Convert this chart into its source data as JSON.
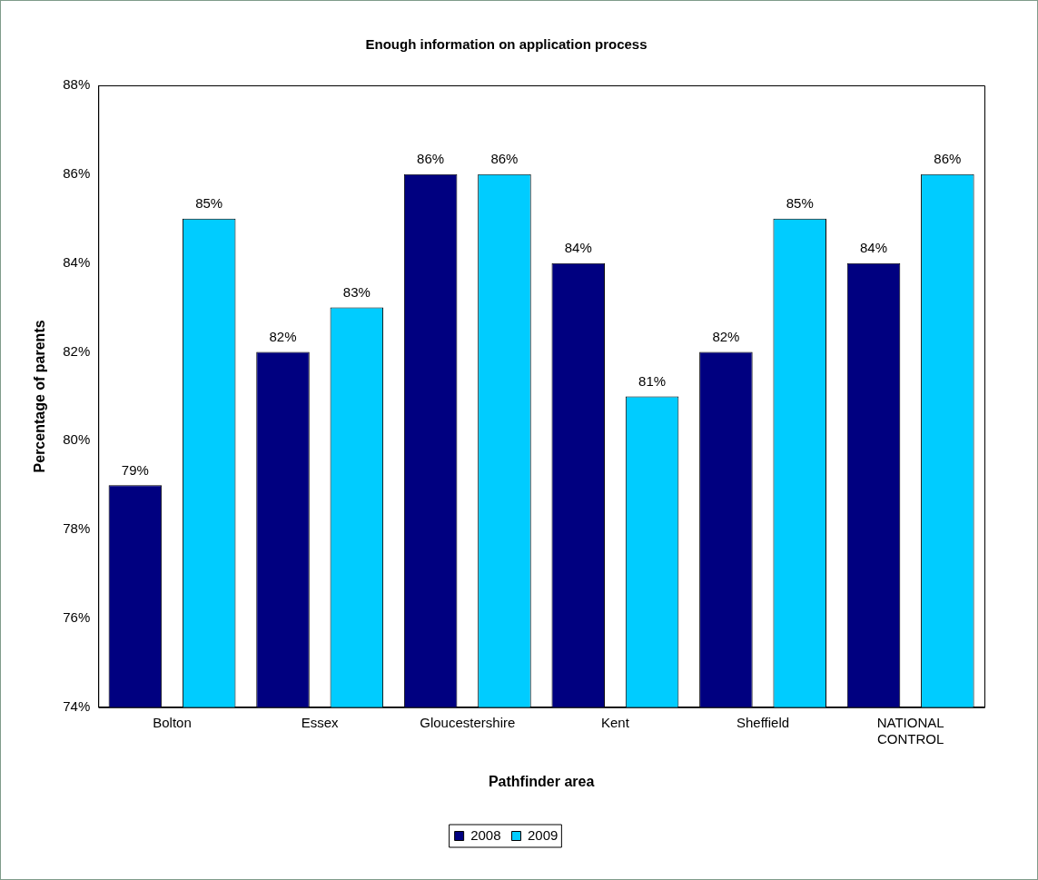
{
  "chart_data": {
    "type": "bar",
    "title": "Enough information on application process",
    "xlabel": "Pathfinder area",
    "ylabel": "Percentage of parents",
    "categories": [
      "Bolton",
      "Essex",
      "Gloucestershire",
      "Kent",
      "Sheffield",
      "NATIONAL CONTROL"
    ],
    "series": [
      {
        "name": "2008",
        "color": "#000080",
        "values": [
          79,
          82,
          86,
          84,
          82,
          84
        ],
        "value_labels": [
          "79%",
          "82%",
          "86%",
          "84%",
          "82%",
          "84%"
        ]
      },
      {
        "name": "2009",
        "color": "#00ccff",
        "values": [
          85,
          83,
          86,
          81,
          85,
          86
        ],
        "value_labels": [
          "85%",
          "83%",
          "86%",
          "81%",
          "85%",
          "86%"
        ]
      }
    ],
    "ylim": [
      74,
      88
    ],
    "yticks": [
      {
        "value": 74,
        "label": "74%"
      },
      {
        "value": 76,
        "label": "76%"
      },
      {
        "value": 78,
        "label": "78%"
      },
      {
        "value": 80,
        "label": "80%"
      },
      {
        "value": 82,
        "label": "82%"
      },
      {
        "value": 84,
        "label": "84%"
      },
      {
        "value": 86,
        "label": "86%"
      },
      {
        "value": 88,
        "label": "88%"
      }
    ],
    "grid": false,
    "legend": "bottom"
  }
}
